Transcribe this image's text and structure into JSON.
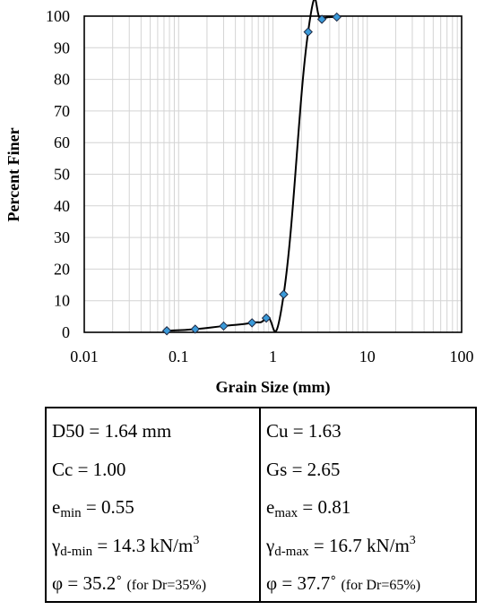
{
  "chart_data": {
    "type": "line",
    "xlabel": "Grain Size (mm)",
    "ylabel": "Percent Finer",
    "x_scale": "log",
    "xlim": [
      0.01,
      100
    ],
    "ylim": [
      0,
      100
    ],
    "x_ticks": [
      "0.01",
      "0.1",
      "1",
      "10",
      "100"
    ],
    "y_ticks": [
      "0",
      "10",
      "20",
      "30",
      "40",
      "50",
      "60",
      "70",
      "80",
      "90",
      "100"
    ],
    "grid": true,
    "marker": "diamond",
    "line_color": "#000000",
    "marker_color": "#3A9AD9",
    "marker_edge_color": "#1F2A44",
    "series": [
      {
        "x": [
          0.075,
          0.15,
          0.3,
          0.6,
          0.85,
          1.3,
          2.36,
          3.3,
          4.75
        ],
        "y": [
          0.5,
          1.0,
          2.0,
          3.0,
          4.5,
          12.0,
          95.0,
          99.0,
          99.7
        ]
      }
    ]
  },
  "properties": {
    "left": [
      {
        "main": "D50 = 1.64 mm"
      },
      {
        "main": "Cc = 1.00"
      },
      {
        "pre": "e",
        "sub": "min",
        "post": " = 0.55"
      },
      {
        "pre": "γ",
        "sub": "d-min",
        "post": " = 14.3 kN/m",
        "sup": "3"
      },
      {
        "main": "φ = 35.2˚ ",
        "note": "(for Dr=35%)"
      }
    ],
    "right": [
      {
        "main": "Cu = 1.63"
      },
      {
        "main": "Gs = 2.65"
      },
      {
        "pre": "e",
        "sub": "max",
        "post": " = 0.81"
      },
      {
        "pre": "γ",
        "sub": "d-max",
        "post": " = 16.7 kN/m",
        "sup": "3"
      },
      {
        "main": "φ = 37.7˚ ",
        "note": "(for Dr=65%)"
      }
    ]
  }
}
